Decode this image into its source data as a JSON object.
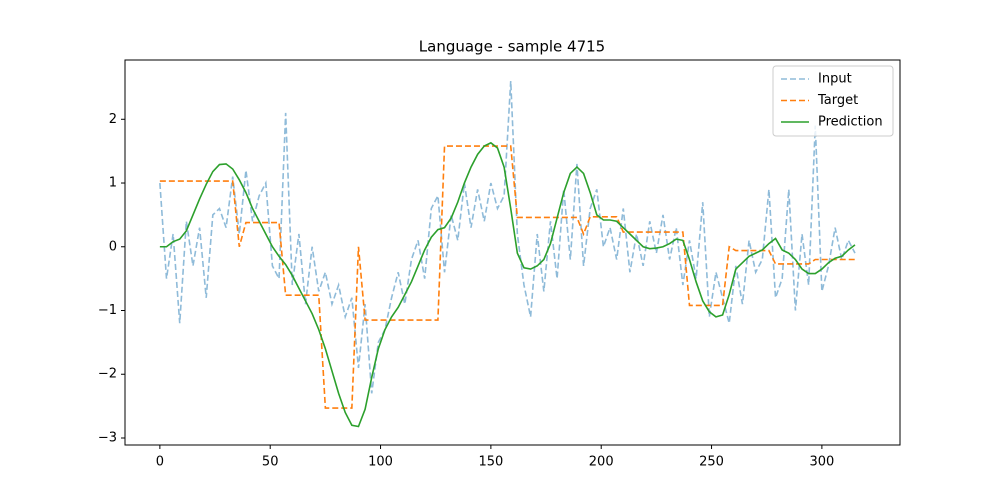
{
  "chart_data": {
    "type": "line",
    "title": "Language - sample 4715",
    "x": [
      0,
      3,
      6,
      9,
      12,
      15,
      18,
      21,
      24,
      27,
      30,
      33,
      36,
      39,
      42,
      45,
      48,
      51,
      54,
      57,
      60,
      63,
      66,
      69,
      72,
      75,
      78,
      81,
      84,
      87,
      90,
      93,
      96,
      99,
      102,
      105,
      108,
      111,
      114,
      117,
      120,
      123,
      126,
      129,
      132,
      135,
      138,
      141,
      144,
      147,
      150,
      153,
      156,
      159,
      162,
      165,
      168,
      171,
      174,
      177,
      180,
      183,
      186,
      189,
      192,
      195,
      198,
      201,
      204,
      207,
      210,
      213,
      216,
      219,
      222,
      225,
      228,
      231,
      234,
      237,
      240,
      243,
      246,
      249,
      252,
      255,
      258,
      261,
      264,
      267,
      270,
      273,
      276,
      279,
      282,
      285,
      288,
      291,
      294,
      297,
      300,
      303,
      306,
      309,
      312,
      315
    ],
    "series": [
      {
        "name": "Input",
        "color": "#1f77b4",
        "opacity": 0.5,
        "linestyle": "dashed",
        "values": [
          1.0,
          -0.5,
          0.2,
          -1.2,
          0.4,
          -0.3,
          0.3,
          -0.8,
          0.5,
          0.6,
          0.3,
          1.1,
          0.2,
          1.2,
          0.4,
          0.8,
          1.0,
          -0.3,
          -0.5,
          2.1,
          -0.6,
          0.2,
          -0.9,
          0.0,
          -0.7,
          -0.4,
          -0.9,
          -0.6,
          -1.1,
          -0.8,
          -1.9,
          -0.9,
          -2.3,
          -1.5,
          -1.3,
          -0.8,
          -0.4,
          -0.9,
          -0.2,
          0.1,
          -0.5,
          0.6,
          0.8,
          -0.4,
          0.5,
          0.1,
          1.0,
          0.3,
          0.9,
          0.4,
          1.0,
          0.6,
          0.8,
          2.6,
          0.2,
          -0.6,
          -1.1,
          0.2,
          -0.7,
          0.4,
          -0.5,
          0.9,
          -0.2,
          1.3,
          -0.3,
          0.6,
          0.9,
          0.0,
          0.3,
          -0.2,
          0.6,
          -0.4,
          0.2,
          -0.3,
          0.4,
          -0.1,
          0.5,
          -0.2,
          0.3,
          -0.6,
          0.1,
          -0.5,
          0.7,
          -1.1,
          -0.4,
          -0.8,
          -1.2,
          -0.3,
          -0.9,
          0.1,
          -0.4,
          -0.2,
          0.9,
          -0.8,
          -0.5,
          0.9,
          -1.0,
          0.2,
          -0.6,
          1.9,
          -0.7,
          -0.3,
          0.3,
          -0.2,
          0.1,
          -0.1
        ]
      },
      {
        "name": "Target",
        "color": "#ff7f0e",
        "linestyle": "dashed",
        "values": [
          1.03,
          1.03,
          1.03,
          1.03,
          1.03,
          1.03,
          1.03,
          1.03,
          1.03,
          1.03,
          1.03,
          1.03,
          0.0,
          0.38,
          0.38,
          0.38,
          0.38,
          0.38,
          0.38,
          -0.76,
          -0.76,
          -0.76,
          -0.76,
          -0.76,
          -0.76,
          -2.53,
          -2.53,
          -2.53,
          -2.53,
          -2.53,
          0.0,
          -1.15,
          -1.15,
          -1.15,
          -1.15,
          -1.15,
          -1.15,
          -1.15,
          -1.15,
          -1.15,
          -1.15,
          -1.15,
          -1.15,
          1.58,
          1.58,
          1.58,
          1.58,
          1.58,
          1.58,
          1.58,
          1.58,
          1.58,
          1.58,
          1.58,
          0.46,
          0.46,
          0.46,
          0.46,
          0.46,
          0.46,
          0.46,
          0.46,
          0.46,
          0.46,
          0.2,
          0.47,
          0.47,
          0.47,
          0.47,
          0.47,
          0.23,
          0.23,
          0.23,
          0.23,
          0.23,
          0.23,
          0.23,
          0.23,
          0.23,
          0.23,
          -0.92,
          -0.92,
          -0.92,
          -0.92,
          -0.92,
          -0.92,
          0.0,
          -0.06,
          -0.06,
          -0.06,
          -0.06,
          -0.06,
          -0.06,
          -0.27,
          -0.27,
          -0.27,
          -0.27,
          -0.27,
          -0.27,
          -0.2,
          -0.2,
          -0.2,
          -0.2,
          -0.2,
          -0.2,
          -0.2
        ]
      },
      {
        "name": "Prediction",
        "color": "#2ca02c",
        "linestyle": "solid",
        "values": [
          0.0,
          0.0,
          0.08,
          0.12,
          0.25,
          0.5,
          0.75,
          0.98,
          1.18,
          1.29,
          1.3,
          1.22,
          1.05,
          0.85,
          0.6,
          0.4,
          0.2,
          0.0,
          -0.15,
          -0.28,
          -0.45,
          -0.65,
          -0.85,
          -1.05,
          -1.3,
          -1.6,
          -1.95,
          -2.3,
          -2.6,
          -2.8,
          -2.82,
          -2.55,
          -2.05,
          -1.6,
          -1.3,
          -1.1,
          -0.95,
          -0.75,
          -0.55,
          -0.3,
          -0.05,
          0.15,
          0.27,
          0.3,
          0.45,
          0.7,
          1.0,
          1.25,
          1.45,
          1.58,
          1.63,
          1.55,
          1.25,
          0.6,
          -0.1,
          -0.33,
          -0.35,
          -0.3,
          -0.2,
          0.05,
          0.45,
          0.85,
          1.15,
          1.25,
          1.15,
          0.85,
          0.5,
          0.42,
          0.42,
          0.4,
          0.3,
          0.2,
          0.1,
          0.0,
          -0.03,
          -0.02,
          0.0,
          0.05,
          0.12,
          0.1,
          -0.2,
          -0.55,
          -0.85,
          -1.02,
          -1.1,
          -1.07,
          -0.75,
          -0.35,
          -0.25,
          -0.15,
          -0.1,
          -0.05,
          0.05,
          0.13,
          -0.05,
          -0.1,
          -0.2,
          -0.35,
          -0.42,
          -0.42,
          -0.35,
          -0.25,
          -0.18,
          -0.15,
          -0.05,
          0.03
        ]
      }
    ],
    "xlim": [
      -15.8,
      335.4
    ],
    "ylim": [
      -3.11,
      2.93
    ],
    "xticks": [
      0,
      50,
      100,
      150,
      200,
      250,
      300
    ],
    "yticks": [
      {
        "value": -3,
        "label": "−3"
      },
      {
        "value": -2,
        "label": "−2"
      },
      {
        "value": -1,
        "label": "−1"
      },
      0,
      1,
      2
    ],
    "grid": false,
    "legend": "upper right"
  }
}
